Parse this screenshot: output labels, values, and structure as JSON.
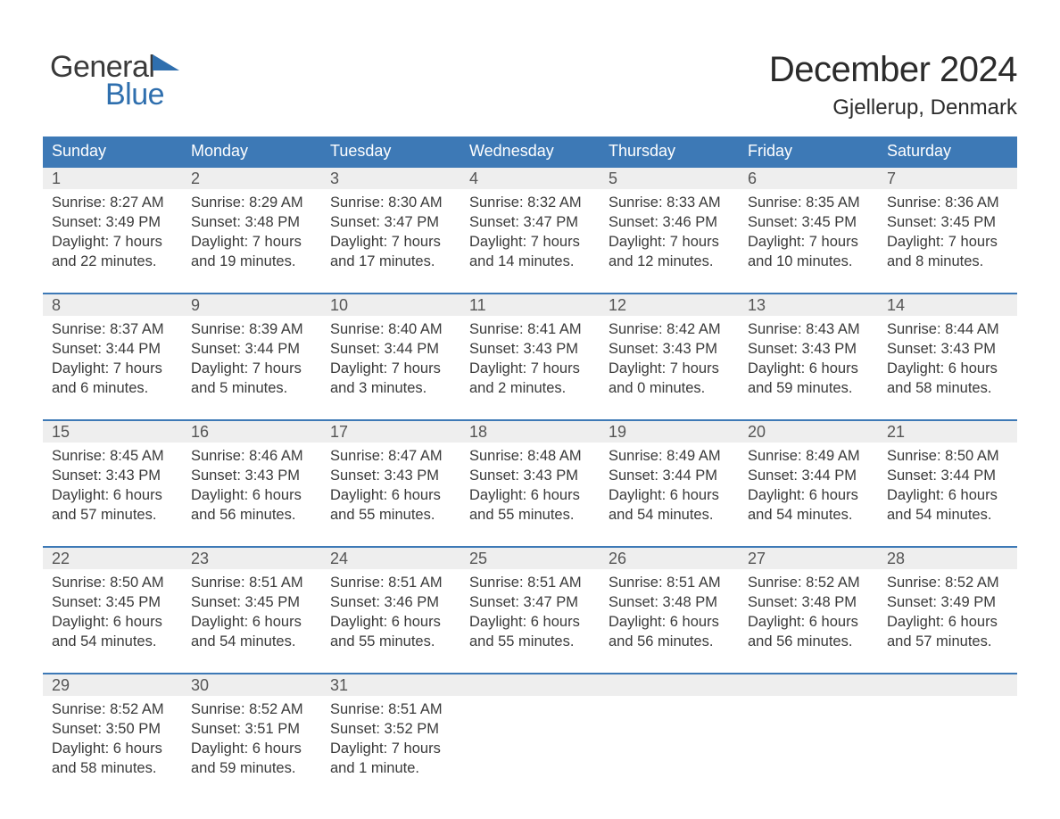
{
  "logo": {
    "word1": "General",
    "word2": "Blue"
  },
  "title": "December 2024",
  "subtitle": "Gjellerup, Denmark",
  "colors": {
    "header_bg": "#3d79b6",
    "header_text": "#ffffff",
    "daynum_bg": "#eeeeee",
    "daynum_border": "#3d79b6",
    "body_text": "#3a3a3a",
    "logo_accent": "#2f6fae",
    "page_bg": "#ffffff"
  },
  "day_names": [
    "Sunday",
    "Monday",
    "Tuesday",
    "Wednesday",
    "Thursday",
    "Friday",
    "Saturday"
  ],
  "weeks": [
    [
      {
        "n": "1",
        "sr": "Sunrise: 8:27 AM",
        "ss": "Sunset: 3:49 PM",
        "d1": "Daylight: 7 hours",
        "d2": "and 22 minutes."
      },
      {
        "n": "2",
        "sr": "Sunrise: 8:29 AM",
        "ss": "Sunset: 3:48 PM",
        "d1": "Daylight: 7 hours",
        "d2": "and 19 minutes."
      },
      {
        "n": "3",
        "sr": "Sunrise: 8:30 AM",
        "ss": "Sunset: 3:47 PM",
        "d1": "Daylight: 7 hours",
        "d2": "and 17 minutes."
      },
      {
        "n": "4",
        "sr": "Sunrise: 8:32 AM",
        "ss": "Sunset: 3:47 PM",
        "d1": "Daylight: 7 hours",
        "d2": "and 14 minutes."
      },
      {
        "n": "5",
        "sr": "Sunrise: 8:33 AM",
        "ss": "Sunset: 3:46 PM",
        "d1": "Daylight: 7 hours",
        "d2": "and 12 minutes."
      },
      {
        "n": "6",
        "sr": "Sunrise: 8:35 AM",
        "ss": "Sunset: 3:45 PM",
        "d1": "Daylight: 7 hours",
        "d2": "and 10 minutes."
      },
      {
        "n": "7",
        "sr": "Sunrise: 8:36 AM",
        "ss": "Sunset: 3:45 PM",
        "d1": "Daylight: 7 hours",
        "d2": "and 8 minutes."
      }
    ],
    [
      {
        "n": "8",
        "sr": "Sunrise: 8:37 AM",
        "ss": "Sunset: 3:44 PM",
        "d1": "Daylight: 7 hours",
        "d2": "and 6 minutes."
      },
      {
        "n": "9",
        "sr": "Sunrise: 8:39 AM",
        "ss": "Sunset: 3:44 PM",
        "d1": "Daylight: 7 hours",
        "d2": "and 5 minutes."
      },
      {
        "n": "10",
        "sr": "Sunrise: 8:40 AM",
        "ss": "Sunset: 3:44 PM",
        "d1": "Daylight: 7 hours",
        "d2": "and 3 minutes."
      },
      {
        "n": "11",
        "sr": "Sunrise: 8:41 AM",
        "ss": "Sunset: 3:43 PM",
        "d1": "Daylight: 7 hours",
        "d2": "and 2 minutes."
      },
      {
        "n": "12",
        "sr": "Sunrise: 8:42 AM",
        "ss": "Sunset: 3:43 PM",
        "d1": "Daylight: 7 hours",
        "d2": "and 0 minutes."
      },
      {
        "n": "13",
        "sr": "Sunrise: 8:43 AM",
        "ss": "Sunset: 3:43 PM",
        "d1": "Daylight: 6 hours",
        "d2": "and 59 minutes."
      },
      {
        "n": "14",
        "sr": "Sunrise: 8:44 AM",
        "ss": "Sunset: 3:43 PM",
        "d1": "Daylight: 6 hours",
        "d2": "and 58 minutes."
      }
    ],
    [
      {
        "n": "15",
        "sr": "Sunrise: 8:45 AM",
        "ss": "Sunset: 3:43 PM",
        "d1": "Daylight: 6 hours",
        "d2": "and 57 minutes."
      },
      {
        "n": "16",
        "sr": "Sunrise: 8:46 AM",
        "ss": "Sunset: 3:43 PM",
        "d1": "Daylight: 6 hours",
        "d2": "and 56 minutes."
      },
      {
        "n": "17",
        "sr": "Sunrise: 8:47 AM",
        "ss": "Sunset: 3:43 PM",
        "d1": "Daylight: 6 hours",
        "d2": "and 55 minutes."
      },
      {
        "n": "18",
        "sr": "Sunrise: 8:48 AM",
        "ss": "Sunset: 3:43 PM",
        "d1": "Daylight: 6 hours",
        "d2": "and 55 minutes."
      },
      {
        "n": "19",
        "sr": "Sunrise: 8:49 AM",
        "ss": "Sunset: 3:44 PM",
        "d1": "Daylight: 6 hours",
        "d2": "and 54 minutes."
      },
      {
        "n": "20",
        "sr": "Sunrise: 8:49 AM",
        "ss": "Sunset: 3:44 PM",
        "d1": "Daylight: 6 hours",
        "d2": "and 54 minutes."
      },
      {
        "n": "21",
        "sr": "Sunrise: 8:50 AM",
        "ss": "Sunset: 3:44 PM",
        "d1": "Daylight: 6 hours",
        "d2": "and 54 minutes."
      }
    ],
    [
      {
        "n": "22",
        "sr": "Sunrise: 8:50 AM",
        "ss": "Sunset: 3:45 PM",
        "d1": "Daylight: 6 hours",
        "d2": "and 54 minutes."
      },
      {
        "n": "23",
        "sr": "Sunrise: 8:51 AM",
        "ss": "Sunset: 3:45 PM",
        "d1": "Daylight: 6 hours",
        "d2": "and 54 minutes."
      },
      {
        "n": "24",
        "sr": "Sunrise: 8:51 AM",
        "ss": "Sunset: 3:46 PM",
        "d1": "Daylight: 6 hours",
        "d2": "and 55 minutes."
      },
      {
        "n": "25",
        "sr": "Sunrise: 8:51 AM",
        "ss": "Sunset: 3:47 PM",
        "d1": "Daylight: 6 hours",
        "d2": "and 55 minutes."
      },
      {
        "n": "26",
        "sr": "Sunrise: 8:51 AM",
        "ss": "Sunset: 3:48 PM",
        "d1": "Daylight: 6 hours",
        "d2": "and 56 minutes."
      },
      {
        "n": "27",
        "sr": "Sunrise: 8:52 AM",
        "ss": "Sunset: 3:48 PM",
        "d1": "Daylight: 6 hours",
        "d2": "and 56 minutes."
      },
      {
        "n": "28",
        "sr": "Sunrise: 8:52 AM",
        "ss": "Sunset: 3:49 PM",
        "d1": "Daylight: 6 hours",
        "d2": "and 57 minutes."
      }
    ],
    [
      {
        "n": "29",
        "sr": "Sunrise: 8:52 AM",
        "ss": "Sunset: 3:50 PM",
        "d1": "Daylight: 6 hours",
        "d2": "and 58 minutes."
      },
      {
        "n": "30",
        "sr": "Sunrise: 8:52 AM",
        "ss": "Sunset: 3:51 PM",
        "d1": "Daylight: 6 hours",
        "d2": "and 59 minutes."
      },
      {
        "n": "31",
        "sr": "Sunrise: 8:51 AM",
        "ss": "Sunset: 3:52 PM",
        "d1": "Daylight: 7 hours",
        "d2": "and 1 minute."
      },
      null,
      null,
      null,
      null
    ]
  ]
}
